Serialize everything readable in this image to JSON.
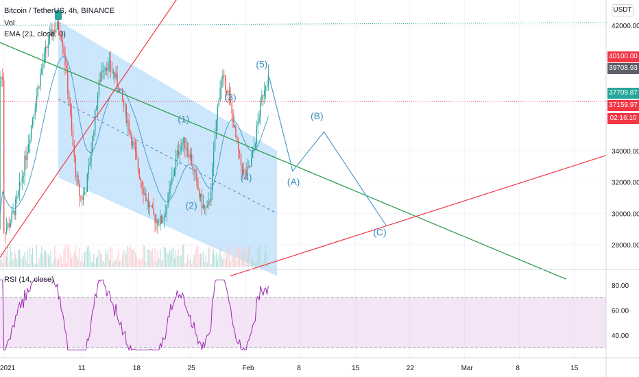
{
  "header": {
    "title": "Bitcoin / TetherUS, 4h, BINANCE",
    "volume_label": "Vol",
    "ema_label": "EMA (21, close, 0)",
    "currency": "USDT",
    "rsi_label": "RSI (14, close)"
  },
  "price_axis": {
    "labels": [
      "42000.00",
      "34000.00",
      "32000.00",
      "30000.00",
      "28000.00"
    ],
    "badges": [
      {
        "text": "40100.00",
        "color": "#f23645"
      },
      {
        "text": "39708.93",
        "color": "#5d606b"
      },
      {
        "text": "37709.87",
        "color": "#26a69a"
      },
      {
        "text": "37159.97",
        "color": "#f23645"
      },
      {
        "text": "02:16:10",
        "color": "#f23645"
      }
    ]
  },
  "rsi_axis": {
    "labels": [
      "80.00",
      "60.00",
      "40.00"
    ]
  },
  "time_axis": {
    "labels": [
      "2021",
      "11",
      "18",
      "25",
      "Feb",
      "8",
      "15",
      "22",
      "Mar",
      "8",
      "15"
    ]
  },
  "wave_labels": [
    "(1)",
    "(2)",
    "(3)",
    "(4)",
    "(5)",
    "(A)",
    "(B)",
    "(C)"
  ],
  "colors": {
    "up": "#26a69a",
    "down": "#ef5350",
    "channel": "#bbdefb",
    "green_line": "#2e9e4f",
    "red_line": "#f23645",
    "wave": "#4a9ccc",
    "rsi": "#9c27b0"
  },
  "chart_data": {
    "type": "candlestick",
    "symbol": "Bitcoin / TetherUS",
    "interval": "4h",
    "exchange": "BINANCE",
    "key_points": [
      {
        "date": "2021-01-01",
        "price": 29000
      },
      {
        "date": "2021-01-08",
        "price": 41900
      },
      {
        "date": "2021-01-11",
        "price": 31000
      },
      {
        "date": "2021-01-14",
        "price": 39500
      },
      {
        "date": "2021-01-21",
        "price": 29500
      },
      {
        "date": "2021-01-24",
        "price": 34500
      },
      {
        "date": "2021-01-27",
        "price": 30200
      },
      {
        "date": "2021-01-29",
        "price": 38500
      },
      {
        "date": "2021-02-01",
        "price": 32500
      },
      {
        "date": "2021-02-04",
        "price": 38700
      }
    ],
    "projection": [
      {
        "label": "(A)",
        "date": "2021-02-07",
        "price": 32700
      },
      {
        "label": "(B)",
        "date": "2021-02-11",
        "price": 35200
      },
      {
        "label": "(C)",
        "date": "2021-02-19",
        "price": 29200
      }
    ],
    "price_range": [
      26000,
      43000
    ],
    "rsi_range": [
      25,
      85
    ],
    "rsi_levels": [
      70,
      30
    ],
    "current_price": 37709.87
  }
}
